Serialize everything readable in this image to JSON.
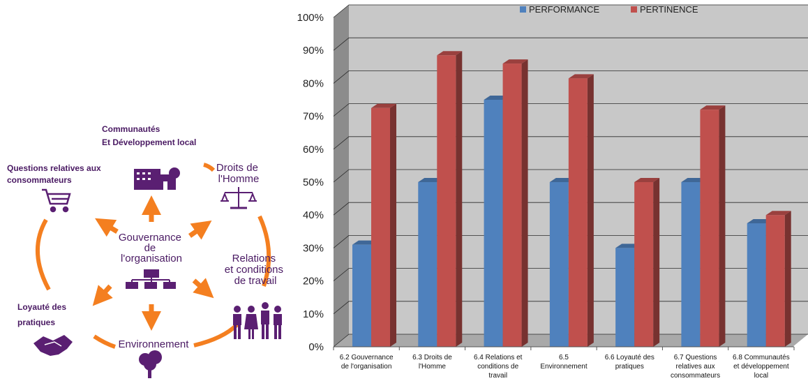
{
  "diagram": {
    "center_lines": [
      "Gouvernance",
      "de",
      "l'organisation"
    ],
    "communautes_lines": [
      "Communautés",
      "Et Développement local"
    ],
    "droits_lines": [
      "Droits de",
      "l'Homme"
    ],
    "questions_lines": [
      "Questions relatives aux",
      "consommateurs"
    ],
    "relations_lines": [
      "Relations",
      "et  conditions",
      "de travail"
    ],
    "loyaute_lines": [
      "Loyauté des",
      "pratiques"
    ],
    "environnement": "Environnement",
    "colors": {
      "purple": "#5a1f72",
      "orange": "#f47f20"
    }
  },
  "chart_data": {
    "type": "bar",
    "categories": [
      [
        "6.2 Gouvernance",
        "de l'organisation"
      ],
      [
        "6.3 Droits de",
        "l'Homme"
      ],
      [
        "6.4 Relations et",
        "conditions de",
        "travail"
      ],
      [
        "6.5",
        "Environnement"
      ],
      [
        "6.6 Loyauté des",
        "pratiques"
      ],
      [
        "6.7 Questions",
        "relatives aux",
        "consommateurs"
      ],
      [
        "6.8 Communautés",
        "et développement",
        "local"
      ]
    ],
    "series": [
      {
        "name": "PERFORMANCE",
        "color": "#4f81bd",
        "values": [
          31,
          50,
          75,
          50,
          30,
          50,
          37.5
        ]
      },
      {
        "name": "PERTINENCE",
        "color": "#c0504d",
        "values": [
          72.5,
          88.5,
          86,
          81.5,
          50,
          72,
          40
        ]
      }
    ],
    "yticks": [
      "0%",
      "10%",
      "20%",
      "30%",
      "40%",
      "50%",
      "60%",
      "70%",
      "80%",
      "90%",
      "100%"
    ],
    "ylim": [
      0,
      100
    ],
    "grid": true,
    "legend": "top"
  }
}
